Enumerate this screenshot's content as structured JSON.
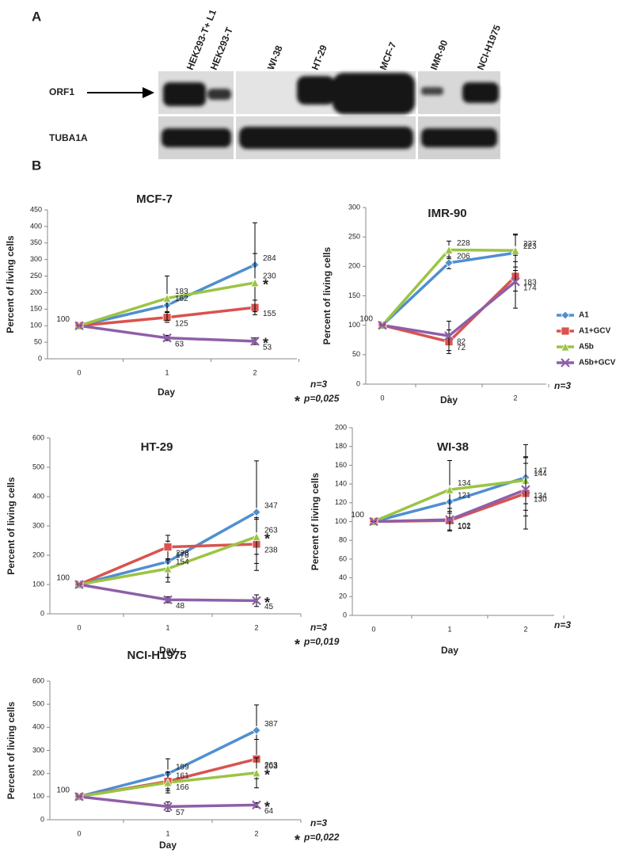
{
  "blot": {
    "panel_label": "A",
    "lanes": [
      "HEK293-T+ L1",
      "HEK293-T",
      "WI-38",
      "HT-29",
      "MCF-7",
      "IMR-90",
      "NCI-H1975"
    ],
    "rows": [
      "ORF1",
      "TUBA1A"
    ]
  },
  "panel_b_label": "B",
  "chart_data": [
    {
      "type": "line",
      "title": "MCF-7",
      "y_label": "Percent of living cells",
      "x_label": "Day",
      "categories": [
        "0",
        "1",
        "2"
      ],
      "ylim": [
        0,
        450
      ],
      "yticks": [
        0,
        50,
        100,
        150,
        200,
        250,
        300,
        350,
        400,
        450
      ],
      "series": [
        {
          "color": "#4f8fd0",
          "values": [
            100,
            162,
            284
          ],
          "errors": [
            0,
            20,
            127
          ],
          "value_labels": [
            "100",
            "162",
            "284"
          ]
        },
        {
          "color": "#d9534f",
          "values": [
            100,
            125,
            155
          ],
          "errors": [
            0,
            15,
            22
          ],
          "value_labels": [
            null,
            "125",
            "155"
          ]
        },
        {
          "color": "#9bc444",
          "values": [
            100,
            183,
            230
          ],
          "errors": [
            0,
            67,
            88
          ],
          "value_labels": [
            null,
            "183",
            "230"
          ]
        },
        {
          "color": "#8e5fa8",
          "values": [
            100,
            63,
            53
          ],
          "errors": [
            0,
            8,
            10
          ],
          "value_labels": [
            null,
            "63",
            "53"
          ]
        }
      ],
      "n_label": "n=3",
      "p_label": "p=0,025",
      "star": "*",
      "starred": [
        2,
        3
      ]
    },
    {
      "type": "line",
      "title": "IMR-90",
      "y_label": "Percent of living cells",
      "x_label": "Day",
      "categories": [
        "0",
        "1",
        "2"
      ],
      "ylim": [
        0,
        300
      ],
      "yticks": [
        0,
        50,
        100,
        150,
        200,
        250,
        300
      ],
      "legend": "right",
      "series": [
        {
          "name": "A1",
          "color": "#4f8fd0",
          "values": [
            100,
            206,
            223
          ],
          "errors": [
            0,
            10,
            30
          ],
          "value_labels": [
            "100",
            "206",
            "223"
          ]
        },
        {
          "name": "A1+GCV",
          "color": "#d9534f",
          "values": [
            100,
            72,
            183
          ],
          "errors": [
            0,
            20,
            25
          ],
          "value_labels": [
            null,
            "72",
            "183"
          ]
        },
        {
          "name": "A5b",
          "color": "#9bc444",
          "values": [
            100,
            228,
            227
          ],
          "errors": [
            0,
            15,
            28
          ],
          "value_labels": [
            null,
            "228",
            "227"
          ]
        },
        {
          "name": "A5b+GCV",
          "color": "#8e5fa8",
          "values": [
            100,
            82,
            174
          ],
          "errors": [
            0,
            25,
            45
          ],
          "value_labels": [
            null,
            "82",
            "174"
          ]
        }
      ],
      "n_label": "n=3"
    },
    {
      "type": "line",
      "title": "HT-29",
      "y_label": "Percent of living cells",
      "x_label": "Day",
      "categories": [
        "0",
        "1",
        "2"
      ],
      "ylim": [
        0,
        600
      ],
      "yticks": [
        0,
        100,
        200,
        300,
        400,
        500,
        600
      ],
      "series": [
        {
          "color": "#4f8fd0",
          "values": [
            100,
            178,
            347
          ],
          "errors": [
            0,
            70,
            175
          ],
          "value_labels": [
            "100",
            "178",
            "347"
          ]
        },
        {
          "color": "#d9534f",
          "values": [
            100,
            228,
            238
          ],
          "errors": [
            0,
            40,
            90
          ],
          "value_labels": [
            null,
            "228",
            "238"
          ]
        },
        {
          "color": "#9bc444",
          "values": [
            100,
            154,
            263
          ],
          "errors": [
            0,
            30,
            60
          ],
          "value_labels": [
            null,
            "154",
            "263"
          ]
        },
        {
          "color": "#8e5fa8",
          "values": [
            100,
            48,
            45
          ],
          "errors": [
            0,
            10,
            20
          ],
          "value_labels": [
            null,
            "48",
            "45"
          ]
        }
      ],
      "n_label": "n=3",
      "p_label": "p=0,019",
      "star": "*",
      "starred": [
        2,
        3
      ]
    },
    {
      "type": "line",
      "title": "WI-38",
      "y_label": "Percent of living cells",
      "x_label": "Day",
      "categories": [
        "0",
        "1",
        "2"
      ],
      "ylim": [
        0,
        200
      ],
      "yticks": [
        0,
        20,
        40,
        60,
        80,
        100,
        120,
        140,
        160,
        180,
        200
      ],
      "series": [
        {
          "color": "#4f8fd0",
          "values": [
            100,
            121,
            147
          ],
          "errors": [
            0,
            12,
            35
          ],
          "value_labels": [
            "100",
            "121",
            "147"
          ]
        },
        {
          "color": "#d9534f",
          "values": [
            100,
            101,
            130
          ],
          "errors": [
            0,
            10,
            38
          ],
          "value_labels": [
            null,
            "101",
            "130"
          ]
        },
        {
          "color": "#9bc444",
          "values": [
            100,
            134,
            144
          ],
          "errors": [
            0,
            31,
            25
          ],
          "value_labels": [
            null,
            "134",
            "144"
          ]
        },
        {
          "color": "#8e5fa8",
          "values": [
            100,
            102,
            134
          ],
          "errors": [
            0,
            12,
            28
          ],
          "value_labels": [
            null,
            "102",
            "134"
          ]
        }
      ],
      "n_label": "n=3"
    },
    {
      "type": "line",
      "title": "NCI-H1975",
      "y_label": "Percent of living cells",
      "x_label": "Day",
      "categories": [
        "0",
        "1",
        "2"
      ],
      "ylim": [
        0,
        600
      ],
      "yticks": [
        0,
        100,
        200,
        300,
        400,
        500,
        600
      ],
      "series": [
        {
          "color": "#4f8fd0",
          "values": [
            100,
            199,
            387
          ],
          "errors": [
            0,
            65,
            110
          ],
          "value_labels": [
            "100",
            "199",
            "387"
          ]
        },
        {
          "color": "#d9534f",
          "values": [
            100,
            166,
            263
          ],
          "errors": [
            0,
            40,
            85
          ],
          "value_labels": [
            null,
            "166",
            "263"
          ]
        },
        {
          "color": "#9bc444",
          "values": [
            100,
            161,
            203
          ],
          "errors": [
            0,
            45,
            65
          ],
          "value_labels": [
            null,
            "161",
            "203"
          ]
        },
        {
          "color": "#8e5fa8",
          "values": [
            100,
            57,
            64
          ],
          "errors": [
            0,
            20,
            10
          ],
          "value_labels": [
            null,
            "57",
            "64"
          ]
        }
      ],
      "n_label": "n=3",
      "p_label": "p=0,022",
      "star": "*",
      "starred": [
        2,
        3
      ]
    }
  ]
}
